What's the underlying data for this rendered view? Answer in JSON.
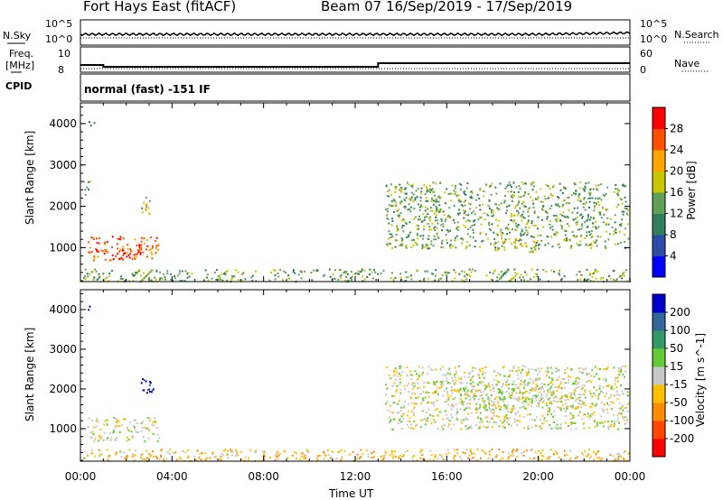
{
  "header": {
    "radar_title": "Fort Hays East (fitACF)",
    "beam_info": "Beam 07  16/Sep/2019 - 17/Sep/2019"
  },
  "nsky_panel": {
    "left_label": "N.Sky",
    "right_label": "N.Search",
    "left_ticks": [
      "10^5",
      "10^0"
    ],
    "right_ticks": [
      "10^5",
      "10^0"
    ]
  },
  "freq_panel": {
    "left_label_line1": "Freq.",
    "left_label_line2": "[MHz]",
    "right_label": "Nave",
    "left_ticks": [
      "10",
      "8"
    ],
    "right_ticks": [
      "60",
      "0"
    ],
    "freq_step_time_h": 13.0
  },
  "cpid_panel": {
    "label": "CPID",
    "mode_text": "normal (fast) -151 IF"
  },
  "x_axis": {
    "label": "Time UT",
    "ticks": [
      "00:00",
      "04:00",
      "08:00",
      "12:00",
      "16:00",
      "20:00",
      "00:00"
    ],
    "range_hours": [
      0,
      24
    ]
  },
  "chart_data": [
    {
      "type": "heatmap",
      "quantity": "Power",
      "ylabel": "Slant Range [km]",
      "yticks": [
        1000,
        2000,
        3000,
        4000
      ],
      "ylim": [
        180,
        4500
      ],
      "xlim_hours": [
        0,
        24
      ],
      "colorbar": {
        "label": "Power [dB]",
        "ticks": [
          "28",
          "24",
          "20",
          "16",
          "12",
          "8",
          "4"
        ],
        "colors": [
          "#0000ff",
          "#2c4ca8",
          "#2f7f5a",
          "#5fa05a",
          "#c8c800",
          "#ffa500",
          "#ff5000",
          "#ff0000"
        ]
      },
      "regions": [
        {
          "t0": 0.3,
          "t1": 3.4,
          "r0": 700,
          "r1": 1300,
          "level": 6
        },
        {
          "t0": 1.8,
          "t1": 2.9,
          "r0": 800,
          "r1": 1100,
          "level": 7
        },
        {
          "t0": 2.6,
          "t1": 3.1,
          "r0": 1800,
          "r1": 2300,
          "level": 4
        },
        {
          "t0": 0.1,
          "t1": 0.4,
          "r0": 2300,
          "r1": 2700,
          "level": 3
        },
        {
          "t0": 0.3,
          "t1": 0.6,
          "r0": 3900,
          "r1": 4100,
          "level": 1
        },
        {
          "t0": 0.1,
          "t1": 24,
          "r0": 200,
          "r1": 500,
          "level": 3
        },
        {
          "t0": 13.3,
          "t1": 23.9,
          "r0": 1000,
          "r1": 2600,
          "level": 3
        },
        {
          "t0": 18.0,
          "t1": 20.0,
          "r0": 900,
          "r1": 1200,
          "level": 4
        }
      ]
    },
    {
      "type": "heatmap",
      "quantity": "Velocity",
      "ylabel": "Slant Range [km]",
      "yticks": [
        1000,
        2000,
        3000,
        4000
      ],
      "ylim": [
        180,
        4500
      ],
      "xlim_hours": [
        0,
        24
      ],
      "colorbar": {
        "label": "Velocity [m s^-1]",
        "ticks": [
          "200",
          "100",
          "50",
          "15",
          "-15",
          "-50",
          "-100",
          "-200"
        ],
        "colors": [
          "#ff0000",
          "#ff4500",
          "#ff8c00",
          "#ffc000",
          "#c8c8c8",
          "#66cc33",
          "#339966",
          "#336699",
          "#0000cc"
        ]
      },
      "regions": [
        {
          "t0": 0.3,
          "t1": 3.4,
          "r0": 700,
          "r1": 1300,
          "level": 4
        },
        {
          "t0": 2.5,
          "t1": 3.2,
          "r0": 1900,
          "r1": 2300,
          "level": 8
        },
        {
          "t0": 0.3,
          "t1": 0.5,
          "r0": 3900,
          "r1": 4100,
          "level": 8
        },
        {
          "t0": 0.1,
          "t1": 24,
          "r0": 200,
          "r1": 500,
          "level": 3
        },
        {
          "t0": 13.3,
          "t1": 23.9,
          "r0": 1000,
          "r1": 2600,
          "level": 4
        },
        {
          "t0": 16.0,
          "t1": 22.0,
          "r0": 1500,
          "r1": 2200,
          "level": 4
        }
      ]
    }
  ]
}
